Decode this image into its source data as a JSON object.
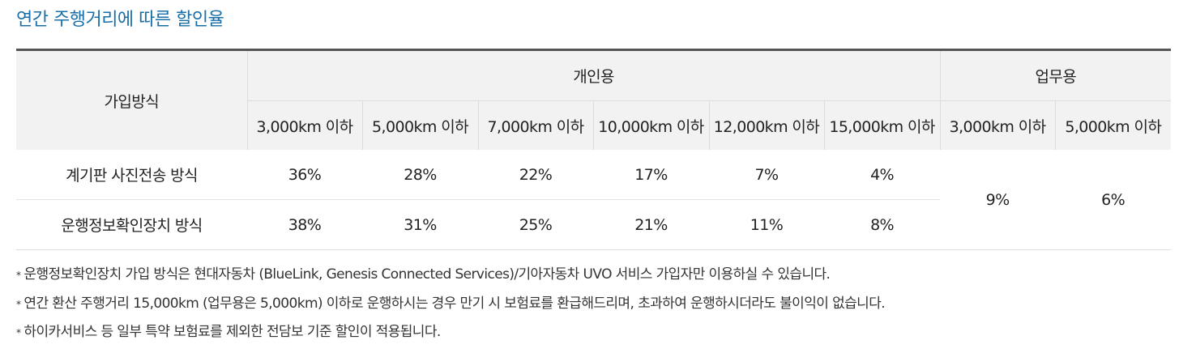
{
  "title": "연간 주행거리에 따른 할인율",
  "table": {
    "method_header": "가입방식",
    "groups": {
      "personal": "개인용",
      "business": "업무용"
    },
    "columns": [
      "3,000km 이하",
      "5,000km 이하",
      "7,000km 이하",
      "10,000km 이하",
      "12,000km 이하",
      "15,000km 이하",
      "3,000km 이하",
      "5,000km 이하"
    ],
    "rows": [
      {
        "label": "계기판 사진전송 방식",
        "values": [
          "36%",
          "28%",
          "22%",
          "17%",
          "7%",
          "4%"
        ]
      },
      {
        "label": "운행정보확인장치 방식",
        "values": [
          "38%",
          "31%",
          "25%",
          "21%",
          "11%",
          "8%"
        ]
      }
    ],
    "business_values": [
      "9%",
      "6%"
    ]
  },
  "notes": [
    "운행정보확인장치 가입 방식은 현대자동차 (BlueLink, Genesis Connected Services)/기아자동차 UVO 서비스 가입자만 이용하실 수 있습니다.",
    "연간 환산 주행거리 15,000km (업무용은 5,000km) 이하로 운행하시는 경우 만기 시 보험료를 환급해드리며, 초과하여 운행하시더라도 불이익이 없습니다.",
    "하이카서비스 등 일부 특약 보험료를 제외한 전담보 기준 할인이 적용됩니다."
  ],
  "note_bullet": "*",
  "colors": {
    "title": "#1a6fa8",
    "header_bg": "#f2f2f2",
    "top_border": "#555555"
  }
}
